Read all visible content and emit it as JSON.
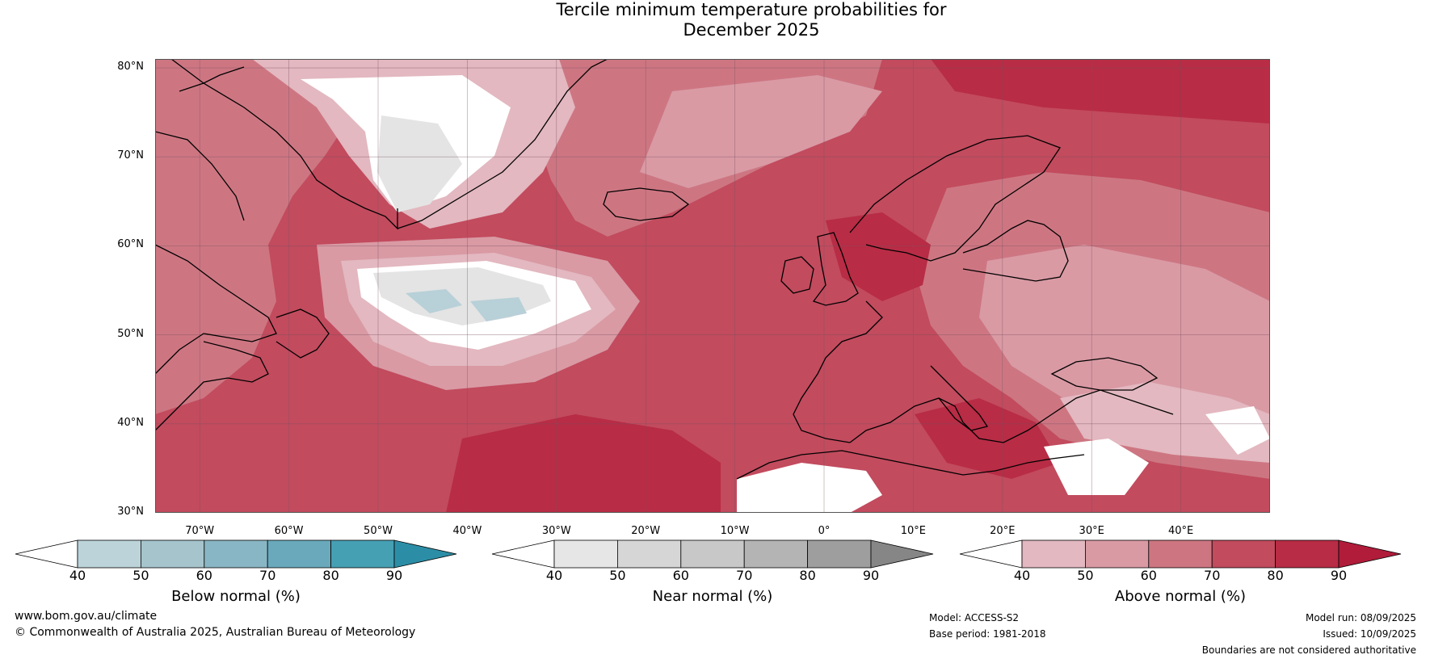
{
  "title_line1": "Tercile minimum temperature probabilities for",
  "title_line2": "December 2025",
  "lat_labels": [
    "80°N",
    "70°N",
    "60°N",
    "50°N",
    "40°N",
    "30°N"
  ],
  "lon_labels": [
    "70°W",
    "60°W",
    "50°W",
    "40°W",
    "30°W",
    "20°W",
    "10°W",
    "0°",
    "10°E",
    "20°E",
    "30°E",
    "40°E"
  ],
  "colorbars": [
    {
      "title": "Below normal (%)",
      "ticks": [
        "40",
        "50",
        "60",
        "70",
        "80",
        "90"
      ],
      "colors": [
        "#ffffff",
        "#bcd3da",
        "#a6c4cc",
        "#89b6c4",
        "#6aa9bc",
        "#46a0b4",
        "#2c8ea6"
      ]
    },
    {
      "title": "Near normal (%)",
      "ticks": [
        "40",
        "50",
        "60",
        "70",
        "80",
        "90"
      ],
      "colors": [
        "#ffffff",
        "#e6e6e6",
        "#d6d6d6",
        "#c8c8c8",
        "#b4b4b4",
        "#9e9e9e",
        "#868686"
      ]
    },
    {
      "title": "Above normal (%)",
      "ticks": [
        "40",
        "50",
        "60",
        "70",
        "80",
        "90"
      ],
      "colors": [
        "#ffffff",
        "#e3b8c0",
        "#d99aa4",
        "#cd7682",
        "#c24b5e",
        "#b82c45",
        "#b01c3a"
      ]
    }
  ],
  "footer": {
    "website": "www.bom.gov.au/climate",
    "copyright": "© Commonwealth of Australia 2025, Australian Bureau of Meteorology",
    "model": "Model: ACCESS-S2",
    "base_period": "Base period: 1981-2018",
    "model_run": "Model run: 08/09/2025",
    "issued": "Issued: 10/09/2025",
    "disclaimer": "Boundaries are not considered authoritative"
  },
  "map_colors": {
    "a50": "#e3b8c0",
    "a60": "#d99aa4",
    "a70": "#cd7682",
    "a80": "#c24b5e",
    "a90": "#b82c45",
    "a100": "#ad1c3a",
    "near": "#e4e4e4",
    "below": "#b8d0d8",
    "white": "#ffffff"
  }
}
